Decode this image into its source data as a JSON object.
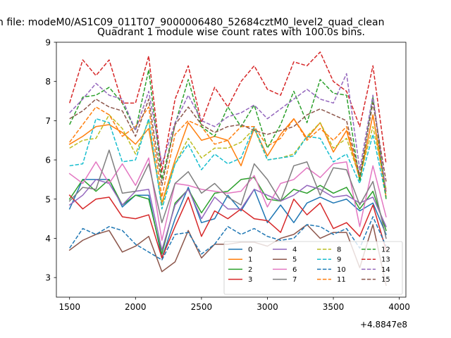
{
  "chart_data": {
    "type": "line",
    "suptitle": "n file: modeM0/AS1C09_011T07_9000006480_52684cztM0_level2_quad_clean",
    "title": "Quadrant 1 module wise count rates with 100.0s bins.",
    "xlabel": "",
    "ylabel": "",
    "x_offset_label": "+4.8847e8",
    "xlim": [
      1400,
      4050
    ],
    "ylim": [
      2.5,
      9.0
    ],
    "xticks": [
      1500,
      2000,
      2500,
      3000,
      3500,
      4000
    ],
    "yticks": [
      3,
      4,
      5,
      6,
      7,
      8,
      9
    ],
    "grid": false,
    "legend_position": "lower-right",
    "legend_columns": 4,
    "x": [
      1500,
      1600,
      1700,
      1800,
      1900,
      2000,
      2100,
      2200,
      2300,
      2400,
      2500,
      2600,
      2700,
      2800,
      2900,
      3000,
      3100,
      3200,
      3300,
      3400,
      3500,
      3600,
      3700,
      3800,
      3900
    ],
    "series": [
      {
        "name": "0",
        "color": "#1f77b4",
        "dash": "solid",
        "values": [
          4.75,
          5.5,
          5.5,
          5.5,
          4.8,
          5.1,
          5.1,
          3.5,
          4.5,
          5.3,
          4.4,
          4.5,
          5.1,
          4.7,
          5.25,
          4.4,
          4.85,
          4.4,
          4.9,
          5.05,
          4.9,
          5.0,
          4.7,
          4.9,
          4.1
        ]
      },
      {
        "name": "1",
        "color": "#ff7f0e",
        "dash": "solid",
        "values": [
          6.4,
          6.6,
          6.85,
          6.9,
          6.7,
          6.4,
          6.8,
          4.9,
          6.0,
          6.95,
          6.5,
          6.6,
          6.5,
          5.85,
          6.8,
          6.1,
          6.65,
          7.05,
          6.55,
          6.95,
          6.2,
          6.75,
          5.5,
          7.15,
          5.2
        ]
      },
      {
        "name": "2",
        "color": "#2ca02c",
        "dash": "solid",
        "values": [
          5.0,
          5.5,
          5.2,
          5.5,
          4.85,
          5.1,
          5.0,
          3.6,
          4.9,
          5.25,
          4.65,
          5.15,
          5.2,
          5.5,
          5.55,
          5.0,
          4.95,
          5.25,
          5.15,
          5.35,
          5.15,
          5.3,
          4.75,
          5.2,
          4.2
        ]
      },
      {
        "name": "3",
        "color": "#d62728",
        "dash": "solid",
        "values": [
          5.1,
          4.75,
          5.0,
          5.05,
          4.55,
          4.5,
          4.6,
          3.5,
          4.3,
          5.05,
          4.05,
          4.7,
          4.5,
          4.75,
          4.5,
          4.45,
          4.15,
          5.0,
          4.6,
          4.9,
          4.25,
          4.4,
          4.05,
          4.85,
          3.7
        ]
      },
      {
        "name": "4",
        "color": "#9467bd",
        "dash": "solid",
        "values": [
          4.85,
          5.1,
          5.5,
          5.4,
          4.85,
          5.2,
          5.25,
          3.7,
          4.85,
          5.25,
          4.5,
          5.05,
          4.75,
          4.75,
          5.25,
          5.1,
          4.95,
          5.1,
          5.35,
          5.25,
          5.05,
          5.1,
          4.9,
          5.05,
          4.3
        ]
      },
      {
        "name": "5",
        "color": "#8c564b",
        "dash": "solid",
        "values": [
          3.7,
          3.95,
          4.1,
          4.2,
          3.65,
          3.8,
          4.05,
          3.15,
          3.4,
          4.2,
          3.5,
          3.85,
          3.85,
          3.9,
          3.9,
          3.8,
          4.0,
          4.1,
          4.35,
          4.0,
          4.15,
          4.15,
          3.25,
          4.35,
          2.8
        ]
      },
      {
        "name": "6",
        "color": "#e377c2",
        "dash": "solid",
        "values": [
          5.65,
          5.4,
          5.95,
          5.4,
          5.9,
          5.35,
          6.05,
          3.95,
          5.4,
          5.35,
          5.25,
          5.2,
          5.15,
          5.2,
          5.6,
          4.8,
          5.4,
          5.5,
          5.8,
          5.55,
          5.9,
          5.95,
          4.3,
          5.85,
          4.55
        ]
      },
      {
        "name": "7",
        "color": "#7f7f7f",
        "dash": "solid",
        "values": [
          4.95,
          5.3,
          5.25,
          6.25,
          5.15,
          5.2,
          5.9,
          4.4,
          5.4,
          5.7,
          5.15,
          5.4,
          5.05,
          4.85,
          5.9,
          5.5,
          4.95,
          5.85,
          5.95,
          5.1,
          5.8,
          5.75,
          4.85,
          5.45,
          4.0
        ]
      },
      {
        "name": "8",
        "color": "#bcbd22",
        "dash": "dashed",
        "values": [
          6.3,
          6.5,
          6.55,
          7.15,
          6.8,
          6.15,
          7.0,
          4.85,
          5.9,
          6.55,
          6.05,
          6.3,
          6.3,
          6.45,
          6.8,
          6.0,
          6.05,
          6.15,
          6.6,
          6.95,
          6.3,
          6.55,
          5.55,
          6.85,
          5.25
        ]
      },
      {
        "name": "9",
        "color": "#17becf",
        "dash": "dashed",
        "values": [
          5.85,
          5.9,
          7.05,
          6.95,
          5.95,
          6.0,
          7.05,
          4.75,
          5.9,
          6.4,
          5.75,
          6.15,
          5.9,
          6.05,
          6.85,
          6.0,
          6.05,
          6.1,
          6.6,
          6.55,
          5.95,
          6.15,
          5.4,
          6.65,
          5.05
        ]
      },
      {
        "name": "10",
        "color": "#1f77b4",
        "dash": "dashed",
        "values": [
          3.75,
          4.25,
          4.1,
          4.3,
          4.2,
          3.85,
          3.65,
          3.45,
          4.1,
          4.15,
          3.6,
          3.85,
          4.3,
          4.1,
          4.25,
          4.05,
          3.95,
          4.0,
          4.35,
          4.3,
          4.1,
          4.25,
          3.75,
          4.55,
          3.8
        ]
      },
      {
        "name": "11",
        "color": "#ff7f0e",
        "dash": "dashed",
        "values": [
          6.45,
          6.9,
          7.35,
          7.15,
          6.6,
          6.85,
          7.35,
          5.05,
          6.65,
          7.0,
          6.85,
          6.4,
          6.5,
          6.85,
          6.85,
          6.35,
          6.55,
          7.05,
          6.5,
          6.8,
          6.5,
          6.85,
          5.5,
          7.15,
          5.05
        ]
      },
      {
        "name": "12",
        "color": "#2ca02c",
        "dash": "dashed",
        "values": [
          6.9,
          7.6,
          7.65,
          7.85,
          7.45,
          6.75,
          8.3,
          5.5,
          6.9,
          8.05,
          6.85,
          6.6,
          7.35,
          6.85,
          7.4,
          6.3,
          6.9,
          7.75,
          6.95,
          8.05,
          7.7,
          7.65,
          5.45,
          7.6,
          5.0
        ]
      },
      {
        "name": "13",
        "color": "#d62728",
        "dash": "dashed",
        "values": [
          7.45,
          8.55,
          8.15,
          8.55,
          7.45,
          7.45,
          8.65,
          5.7,
          7.55,
          8.4,
          6.95,
          7.85,
          7.35,
          8.0,
          8.4,
          7.8,
          7.65,
          8.5,
          8.4,
          8.75,
          8.0,
          7.75,
          6.85,
          8.4,
          5.9
        ]
      },
      {
        "name": "14",
        "color": "#9467bd",
        "dash": "dashed",
        "values": [
          7.2,
          7.55,
          7.95,
          7.65,
          7.55,
          6.75,
          7.75,
          5.9,
          6.95,
          7.65,
          7.0,
          6.85,
          7.1,
          7.2,
          7.4,
          7.05,
          7.3,
          7.55,
          7.8,
          7.55,
          7.45,
          8.2,
          5.75,
          7.65,
          5.15
        ]
      },
      {
        "name": "15",
        "color": "#8c564b",
        "dash": "dashed",
        "values": [
          7.05,
          7.25,
          7.55,
          7.35,
          7.25,
          6.6,
          7.55,
          5.35,
          6.9,
          7.35,
          6.9,
          6.7,
          6.85,
          6.9,
          6.75,
          6.65,
          6.75,
          6.85,
          7.15,
          7.3,
          7.15,
          7.0,
          5.6,
          7.45,
          5.45
        ]
      }
    ]
  }
}
